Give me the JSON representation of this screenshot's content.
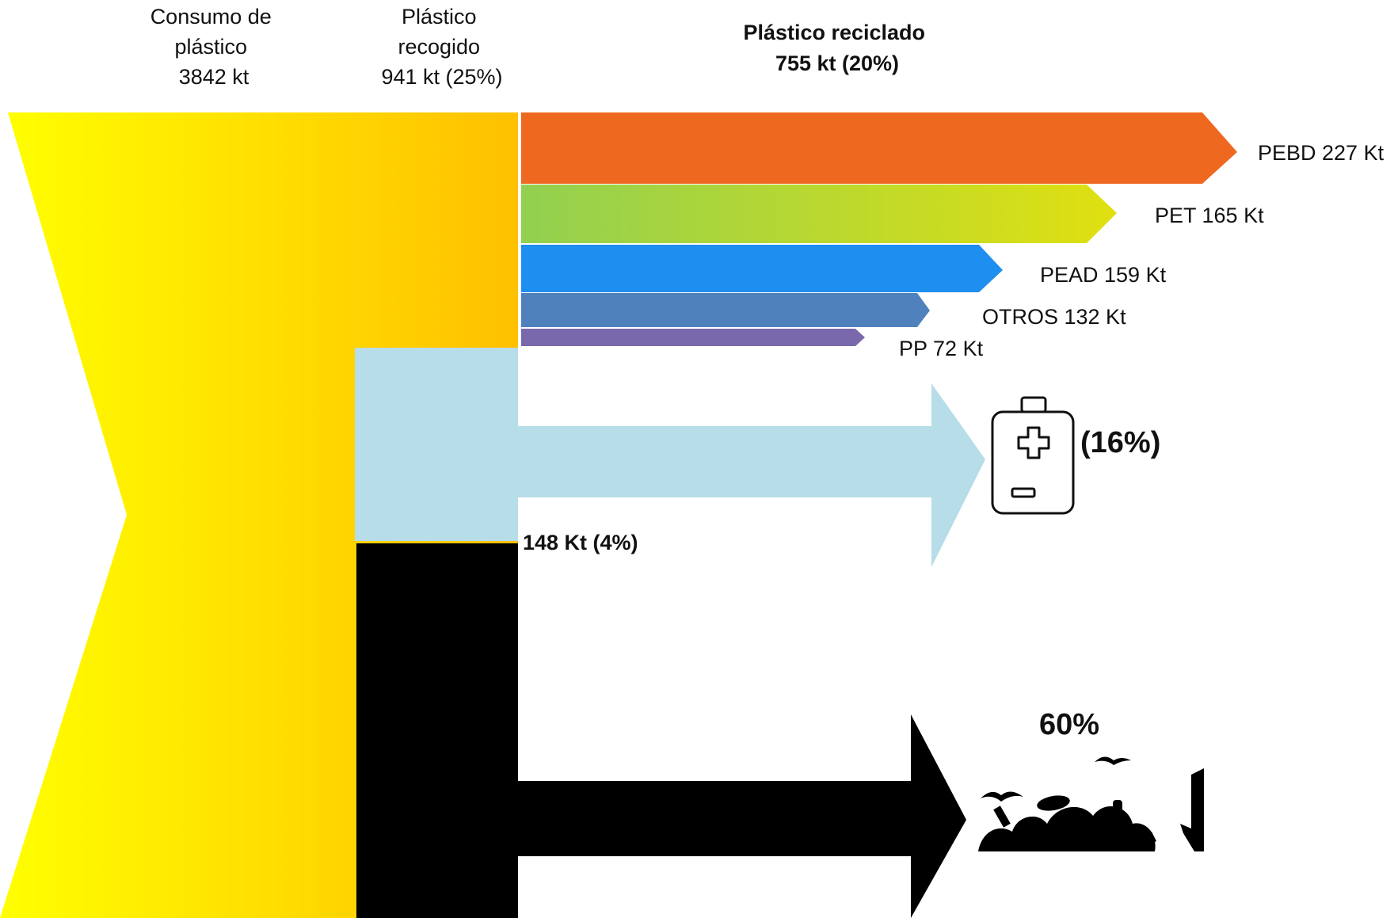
{
  "headers": {
    "consumption": {
      "line1": "Consumo de",
      "line2": "plástico",
      "line3": "3842 kt"
    },
    "collected": {
      "line1": "Plástico",
      "line2": "recogido",
      "line3": "941 kt (25%)"
    },
    "recycled": {
      "line1": "Plástico reciclado",
      "line2": "755 kt (20%)"
    }
  },
  "recycled_streams": [
    {
      "label": "PEBD 227 Kt",
      "name": "PEBD",
      "value_kt": 227,
      "color": "#ef6820"
    },
    {
      "label": "PET 165 Kt",
      "name": "PET",
      "value_kt": 165,
      "color_start": "#92d050",
      "color_end": "#e0e010"
    },
    {
      "label": "PEAD 159 Kt",
      "name": "PEAD",
      "value_kt": 159,
      "color": "#1e8ef0"
    },
    {
      "label": "OTROS 132 Kt",
      "name": "OTROS",
      "value_kt": 132,
      "color": "#4f81bd"
    },
    {
      "label": "PP 72 Kt",
      "name": "PP",
      "value_kt": 72,
      "color": "#7a68ac"
    }
  ],
  "energy_recovery": {
    "label": "148 Kt (4%)",
    "percent_label": "(16%)",
    "color": "#b7dde8",
    "icon": "bottle-icon"
  },
  "landfill": {
    "percent_label": "60%",
    "percent_color": "#ff0000",
    "color": "#000000",
    "icon": "landfill-waste-icon"
  },
  "colors": {
    "consumption_start": "#ffff00",
    "consumption_end": "#ffc000"
  }
}
